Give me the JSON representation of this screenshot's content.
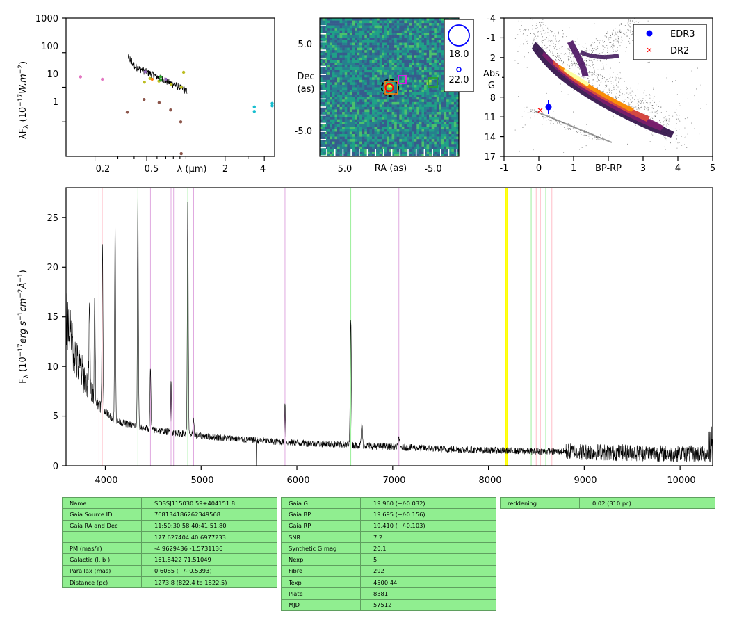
{
  "sed": {
    "ylabel": "λF",
    "ylabel_sub": "λ",
    "ylabel_units": " (10",
    "ylabel_exp": "−17",
    "ylabel_units2": "W.m",
    "ylabel_exp2": "−2",
    "ylabel_close": ")",
    "xlabel": "λ (μm)",
    "yticks": [
      "1000",
      "100",
      "10",
      "1"
    ],
    "xticks": [
      "0.2",
      "0.5",
      "2",
      "4"
    ],
    "ylim": [
      0.1,
      1000
    ],
    "xlim": [
      0.12,
      4.8
    ],
    "xscale": "log",
    "yscale": "log"
  },
  "image": {
    "ylabel_line1": "Dec",
    "ylabel_line2": "(as)",
    "xlabel": "RA (as)",
    "yticks": [
      "5.0",
      "-5.0"
    ],
    "xticks": [
      "5.0",
      "-5.0"
    ],
    "legend": [
      {
        "label": "18.0"
      },
      {
        "label": "22.0"
      }
    ]
  },
  "hrd": {
    "ylabel_line1": "Abs",
    "ylabel_line2": "G",
    "xlabel": "BP-RP",
    "yticks": [
      "-4",
      "-1",
      "2",
      "5",
      "8",
      "11",
      "14",
      "17"
    ],
    "xticks": [
      "-1",
      "0",
      "1",
      "2",
      "3",
      "4",
      "5"
    ],
    "legend": [
      {
        "label": "EDR3",
        "color": "#0000ff"
      },
      {
        "label": "DR2",
        "color": "#ff0000"
      }
    ]
  },
  "spec": {
    "ylabel_main": "F",
    "ylabel_sub": "λ",
    "ylabel_rest": " (10",
    "ylabel_exp1": "−17",
    "ylabel_units": "erg s",
    "ylabel_exp2": "−1",
    "ylabel_units2": "cm",
    "ylabel_exp3": "−2",
    "ylabel_units3": "Å",
    "ylabel_exp4": "−1",
    "ylabel_close": ")",
    "yticks": [
      "0",
      "5",
      "10",
      "15",
      "20",
      "25"
    ],
    "xticks": [
      "4000",
      "5000",
      "6000",
      "7000",
      "8000",
      "9000",
      "10000"
    ]
  },
  "chart_data": [
    {
      "type": "scatter",
      "title": "",
      "xlabel": "λ (μm)",
      "ylabel": "λFλ (10^-17 W.m^-2)",
      "xscale": "log",
      "yscale": "log",
      "xlim": [
        0.12,
        4.8
      ],
      "ylim": [
        0.1,
        1000
      ],
      "series": [
        {
          "color": "#e377c2",
          "x": [
            0.155,
            0.228
          ],
          "y": [
            20,
            17
          ]
        },
        {
          "color": "#8c564b",
          "x": [
            0.354,
            0.477,
            0.623,
            0.763,
            0.913,
            0.92
          ],
          "y": [
            1.9,
            4.4,
            3.6,
            2.2,
            1.0,
            0.12
          ]
        },
        {
          "color": "#bcbd22",
          "x": [
            0.48,
            0.53,
            0.62,
            0.77,
            0.92,
            0.96
          ],
          "y": [
            14,
            18,
            15,
            12,
            10,
            27
          ]
        },
        {
          "color": "#17becf",
          "x": [
            3.35,
            3.35,
            4.6,
            4.6
          ],
          "y": [
            2.7,
            2.0,
            3.4,
            2.9
          ]
        },
        {
          "color": "#9467bd",
          "x": [
            0.487,
            0.7
          ],
          "y": [
            28,
            17
          ]
        },
        {
          "color": "#2ca02c",
          "x": [
            0.64,
            0.64
          ],
          "y": [
            20,
            16
          ]
        },
        {
          "color": "#ff7f0e",
          "x": [
            0.55
          ],
          "y": [
            17
          ]
        }
      ],
      "spectrum_line": {
        "x_range": [
          0.36,
          1.02
        ],
        "y_start": 50,
        "y_end": 8
      }
    },
    {
      "type": "heatmap",
      "title": "",
      "xlabel": "RA (as)",
      "ylabel": "Dec (as)",
      "xlim": [
        8,
        -8
      ],
      "ylim": [
        -8,
        8
      ],
      "markers": [
        {
          "shape": "circle-dashed",
          "ra": 0.2,
          "dec": 0.0,
          "color": "#000000"
        },
        {
          "shape": "circle",
          "ra": 0.2,
          "dec": 0.0,
          "color": "#ff0000"
        },
        {
          "shape": "square",
          "ra": -1.3,
          "dec": 0.9,
          "color": "#ff00ff"
        },
        {
          "shape": "square",
          "ra": -5.0,
          "dec": 0.6,
          "color": "#2ca02c"
        }
      ]
    },
    {
      "type": "scatter",
      "title": "",
      "xlabel": "BP-RP",
      "ylabel": "Abs G",
      "xlim": [
        -1,
        5
      ],
      "ylim": [
        17,
        -4
      ],
      "series": [
        {
          "name": "EDR3",
          "color": "#0000ff",
          "x": [
            0.28
          ],
          "y": [
            10.1
          ],
          "yerr": 1.1
        },
        {
          "name": "DR2",
          "color": "#ff0000",
          "x": [
            0.05
          ],
          "y": [
            10.5
          ]
        }
      ]
    },
    {
      "type": "line",
      "title": "",
      "xlabel": "",
      "ylabel": "Fλ (10^-17 erg s^-1 cm^-2 Å^-1)",
      "xlim": [
        3590,
        10340
      ],
      "ylim": [
        0,
        28
      ],
      "continuum": [
        [
          3590,
          15
        ],
        [
          3700,
          10.5
        ],
        [
          3900,
          6.5
        ],
        [
          4100,
          4.5
        ],
        [
          4500,
          3.6
        ],
        [
          5000,
          3.0
        ],
        [
          5500,
          2.6
        ],
        [
          6000,
          2.3
        ],
        [
          6500,
          2.1
        ],
        [
          7000,
          1.9
        ],
        [
          7500,
          1.7
        ],
        [
          8000,
          1.55
        ],
        [
          8500,
          1.45
        ],
        [
          9000,
          1.4
        ],
        [
          9500,
          1.3
        ],
        [
          10000,
          1.2
        ],
        [
          10340,
          1.2
        ]
      ],
      "emission_lines": [
        {
          "x": 3835,
          "peak": 16.5
        },
        {
          "x": 3889,
          "peak": 18
        },
        {
          "x": 3970,
          "peak": 22.5
        },
        {
          "x": 4102,
          "peak": 24.8
        },
        {
          "x": 4340,
          "peak": 26.9
        },
        {
          "x": 4471,
          "peak": 9.8
        },
        {
          "x": 4686,
          "peak": 8.9
        },
        {
          "x": 4861,
          "peak": 26.8
        },
        {
          "x": 4922,
          "peak": 4.7
        },
        {
          "x": 5876,
          "peak": 6.5
        },
        {
          "x": 6563,
          "peak": 15.0
        },
        {
          "x": 6678,
          "peak": 4.3
        },
        {
          "x": 7065,
          "peak": 2.9
        }
      ],
      "vlines": [
        {
          "x": 3934,
          "color": "#ffb6c1"
        },
        {
          "x": 3968,
          "color": "#ffb6c1"
        },
        {
          "x": 4102,
          "color": "#90ee90"
        },
        {
          "x": 4340,
          "color": "#90ee90"
        },
        {
          "x": 4471,
          "color": "#dda0dd"
        },
        {
          "x": 4686,
          "color": "#dda0dd"
        },
        {
          "x": 4713,
          "color": "#dda0dd"
        },
        {
          "x": 4861,
          "color": "#90ee90"
        },
        {
          "x": 4922,
          "color": "#dda0dd"
        },
        {
          "x": 5876,
          "color": "#dda0dd"
        },
        {
          "x": 6563,
          "color": "#90ee90"
        },
        {
          "x": 6678,
          "color": "#dda0dd"
        },
        {
          "x": 7065,
          "color": "#dda0dd"
        },
        {
          "x": 8183,
          "color": "#ffff00"
        },
        {
          "x": 8195,
          "color": "#ffff00"
        },
        {
          "x": 8446,
          "color": "#90ee90"
        },
        {
          "x": 8498,
          "color": "#ffb6c1"
        },
        {
          "x": 8542,
          "color": "#ffb6c1"
        },
        {
          "x": 8598,
          "color": "#90ee90"
        },
        {
          "x": 8662,
          "color": "#ffb6c1"
        }
      ]
    }
  ],
  "tables": {
    "left": [
      [
        "Name",
        "SDSSJ115030.59+404151.8"
      ],
      [
        "Gaia Source ID",
        "768134186262349568"
      ],
      [
        "Gaia RA and Dec",
        "11:50:30.58    40:41:51.80"
      ],
      [
        "",
        "177.627404    40.6977233"
      ],
      [
        "PM (mas/Y)",
        "-4.9629436    -1.5731136"
      ],
      [
        "Galactic (l, b )",
        "161.8422    71.51049"
      ],
      [
        "Parallax (mas)",
        "0.6085 (+/- 0.5393)"
      ],
      [
        "Distance (pc)",
        "1273.8 (822.4 to 1822.5)"
      ]
    ],
    "middle": [
      [
        "Gaia G",
        "19.960 (+/-0.032)"
      ],
      [
        "Gaia BP",
        "19.695 (+/-0.156)"
      ],
      [
        "Gaia RP",
        "19.410 (+/-0.103)"
      ],
      [
        "SNR",
        "7.2"
      ],
      [
        "Synthetic G mag",
        "20.1"
      ],
      [
        "Nexp",
        "5"
      ],
      [
        "Fibre",
        "292"
      ],
      [
        "Texp",
        "4500.44"
      ],
      [
        "Plate",
        "8381"
      ],
      [
        "MJD",
        "57512"
      ]
    ],
    "right": [
      [
        "reddening",
        "0.02 (310 pc)"
      ]
    ]
  }
}
